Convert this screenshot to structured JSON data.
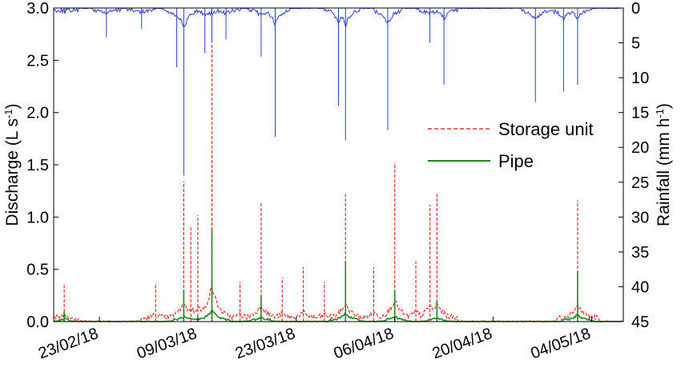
{
  "chart_data": {
    "type": "line",
    "ylabel_left": "Discharge (L s⁻¹)",
    "ylabel_right": "Rainfall (mm h⁻¹)",
    "x_tick_labels": [
      "23/02/18",
      "09/03/18",
      "23/03/18",
      "06/04/18",
      "20/04/18",
      "04/05/18"
    ],
    "xlim": [
      "2018-02-17",
      "2018-05-09"
    ],
    "ylim_left": [
      0,
      3.0
    ],
    "yticks_left": [
      "0.0",
      "0.5",
      "1.0",
      "1.5",
      "2.0",
      "2.5",
      "3.0"
    ],
    "ylim_right_inverted": [
      0,
      45
    ],
    "yticks_right": [
      "0",
      "5",
      "10",
      "15",
      "20",
      "25",
      "30",
      "35",
      "40",
      "45"
    ],
    "legend": {
      "position": "right-center",
      "entries": [
        "Storage unit",
        "Pipe"
      ]
    },
    "colors": {
      "storage": "#e8302a",
      "pipe": "#1e8a1e",
      "rain": "#2a3ae8"
    },
    "series": [
      {
        "name": "Storage unit",
        "style": "dashed",
        "peaks": [
          {
            "x": "2018-02-18",
            "y": 0.35
          },
          {
            "x": "2018-03-03",
            "y": 0.35
          },
          {
            "x": "2018-03-07",
            "y": 1.34
          },
          {
            "x": "2018-03-07",
            "y": 1.31
          },
          {
            "x": "2018-03-08",
            "y": 0.92
          },
          {
            "x": "2018-03-09",
            "y": 1.02
          },
          {
            "x": "2018-03-11",
            "y": 1.62
          },
          {
            "x": "2018-03-11",
            "y": 2.65
          },
          {
            "x": "2018-03-15",
            "y": 0.38
          },
          {
            "x": "2018-03-18",
            "y": 1.14
          },
          {
            "x": "2018-03-21",
            "y": 0.42
          },
          {
            "x": "2018-03-24",
            "y": 0.52
          },
          {
            "x": "2018-03-27",
            "y": 0.38
          },
          {
            "x": "2018-03-30",
            "y": 1.22
          },
          {
            "x": "2018-04-03",
            "y": 0.52
          },
          {
            "x": "2018-04-06",
            "y": 1.52
          },
          {
            "x": "2018-04-09",
            "y": 0.58
          },
          {
            "x": "2018-04-11",
            "y": 1.12
          },
          {
            "x": "2018-04-12",
            "y": 1.22
          },
          {
            "x": "2018-05-02",
            "y": 1.16
          }
        ]
      },
      {
        "name": "Pipe",
        "style": "solid",
        "peaks": [
          {
            "x": "2018-02-18",
            "y": 0.1
          },
          {
            "x": "2018-03-07",
            "y": 0.3
          },
          {
            "x": "2018-03-11",
            "y": 0.88
          },
          {
            "x": "2018-03-18",
            "y": 0.25
          },
          {
            "x": "2018-03-30",
            "y": 0.58
          },
          {
            "x": "2018-04-06",
            "y": 0.3
          },
          {
            "x": "2018-04-12",
            "y": 0.2
          },
          {
            "x": "2018-05-02",
            "y": 0.48
          }
        ]
      },
      {
        "name": "Rainfall",
        "style": "bars-inverted",
        "peaks": [
          {
            "x": "2018-02-18",
            "y": 0.8
          },
          {
            "x": "2018-02-24",
            "y": 4.2
          },
          {
            "x": "2018-03-01",
            "y": 3.0
          },
          {
            "x": "2018-03-06",
            "y": 8.5
          },
          {
            "x": "2018-03-07",
            "y": 24.0
          },
          {
            "x": "2018-03-10",
            "y": 6.5
          },
          {
            "x": "2018-03-11",
            "y": 5.0
          },
          {
            "x": "2018-03-13",
            "y": 4.5
          },
          {
            "x": "2018-03-18",
            "y": 7.0
          },
          {
            "x": "2018-03-20",
            "y": 18.5
          },
          {
            "x": "2018-03-29",
            "y": 14.0
          },
          {
            "x": "2018-03-30",
            "y": 19.0
          },
          {
            "x": "2018-04-05",
            "y": 17.5
          },
          {
            "x": "2018-04-11",
            "y": 5.0
          },
          {
            "x": "2018-04-13",
            "y": 11.0
          },
          {
            "x": "2018-04-26",
            "y": 13.5
          },
          {
            "x": "2018-04-30",
            "y": 12.0
          },
          {
            "x": "2018-05-02",
            "y": 11.0
          }
        ]
      }
    ]
  }
}
